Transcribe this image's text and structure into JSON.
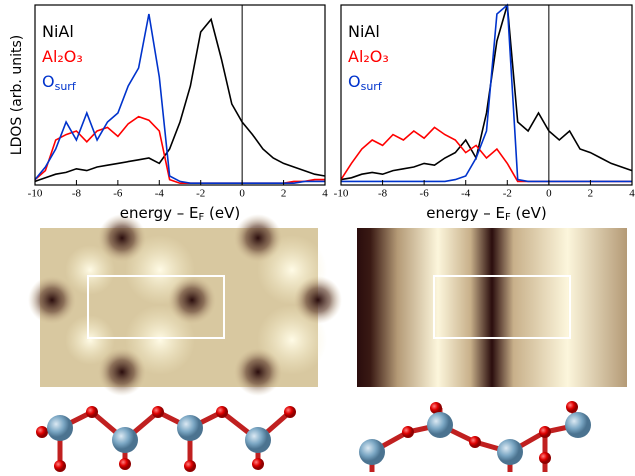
{
  "chart_data": [
    {
      "type": "line",
      "ylabel": "LDOS (arb. units)",
      "xlabel": {
        "text": "energy – E",
        "sub": "F",
        "tail": " (eV)"
      },
      "x": [
        -10,
        -9.5,
        -9,
        -8.5,
        -8,
        -7.5,
        -7,
        -6.5,
        -6,
        -5.5,
        -5,
        -4.5,
        -4,
        -3.5,
        -3,
        -2.5,
        -2,
        -1.5,
        -1,
        -0.5,
        0,
        0.5,
        1,
        1.5,
        2,
        2.5,
        3,
        3.5,
        4
      ],
      "xlim": [
        -10,
        4
      ],
      "ylim": [
        0,
        10
      ],
      "xticks": [
        -10,
        -8,
        -6,
        -4,
        -2,
        0,
        2,
        4
      ],
      "vline": 0,
      "series": [
        {
          "name": "NiAl",
          "color": "#000000",
          "values": [
            0.2,
            0.4,
            0.6,
            0.7,
            0.9,
            0.8,
            1,
            1.1,
            1.2,
            1.3,
            1.4,
            1.5,
            1.2,
            2,
            3.5,
            5.5,
            8.5,
            9.2,
            7,
            4.5,
            3.5,
            2.8,
            2,
            1.5,
            1.2,
            1,
            0.8,
            0.6,
            0.5
          ]
        },
        {
          "name": "Al₂O₃",
          "color": "#ff0000",
          "values": [
            0.3,
            0.8,
            2.5,
            2.8,
            3,
            2.4,
            3,
            3.2,
            2.7,
            3.4,
            3.8,
            3.6,
            3,
            0.3,
            0.1,
            0.1,
            0.1,
            0.1,
            0.1,
            0.1,
            0.1,
            0.1,
            0.1,
            0.1,
            0.1,
            0.2,
            0.2,
            0.3,
            0.3
          ]
        },
        {
          "name": "O",
          "subscript": "surf",
          "color": "#0033cc",
          "values": [
            0.3,
            1,
            2,
            3.5,
            2.5,
            4,
            2.5,
            3.5,
            4,
            5.5,
            6.5,
            9.5,
            6,
            0.5,
            0.2,
            0.1,
            0.1,
            0.1,
            0.1,
            0.1,
            0.1,
            0.1,
            0.1,
            0.1,
            0.1,
            0.1,
            0.2,
            0.2,
            0.2
          ]
        }
      ]
    },
    {
      "type": "line",
      "xlabel": {
        "text": "energy – E",
        "sub": "F",
        "tail": " (eV)"
      },
      "x": [
        -10,
        -9.5,
        -9,
        -8.5,
        -8,
        -7.5,
        -7,
        -6.5,
        -6,
        -5.5,
        -5,
        -4.5,
        -4,
        -3.5,
        -3,
        -2.5,
        -2,
        -1.5,
        -1,
        -0.5,
        0,
        0.5,
        1,
        1.5,
        2,
        2.5,
        3,
        3.5,
        4
      ],
      "xlim": [
        -10,
        4
      ],
      "ylim": [
        0,
        10
      ],
      "xticks": [
        -10,
        -8,
        -6,
        -4,
        -2,
        0,
        2,
        4
      ],
      "vline": 0,
      "series": [
        {
          "name": "NiAl",
          "color": "#000000",
          "values": [
            0.3,
            0.4,
            0.6,
            0.7,
            0.6,
            0.8,
            0.9,
            1,
            1.2,
            1.1,
            1.5,
            1.8,
            2.5,
            1.5,
            4,
            8,
            10,
            3.5,
            3,
            4,
            3,
            2.5,
            3,
            2,
            1.8,
            1.5,
            1.2,
            1,
            0.8
          ]
        },
        {
          "name": "Al₂O₃",
          "color": "#ff0000",
          "values": [
            0.3,
            1.2,
            2,
            2.5,
            2.2,
            2.8,
            2.5,
            3,
            2.6,
            3.2,
            2.8,
            2.5,
            1.8,
            2.2,
            1.5,
            2,
            1.2,
            0.2,
            0.2,
            0.2,
            0.2,
            0.2,
            0.2,
            0.2,
            0.2,
            0.2,
            0.2,
            0.2,
            0.2
          ]
        },
        {
          "name": "O",
          "subscript": "surf",
          "color": "#0033cc",
          "values": [
            0.2,
            0.2,
            0.2,
            0.2,
            0.2,
            0.2,
            0.2,
            0.2,
            0.2,
            0.2,
            0.2,
            0.3,
            0.5,
            1.5,
            3,
            9.5,
            10,
            0.3,
            0.2,
            0.2,
            0.2,
            0.2,
            0.2,
            0.2,
            0.2,
            0.2,
            0.2,
            0.2,
            0.2
          ]
        }
      ]
    }
  ]
}
